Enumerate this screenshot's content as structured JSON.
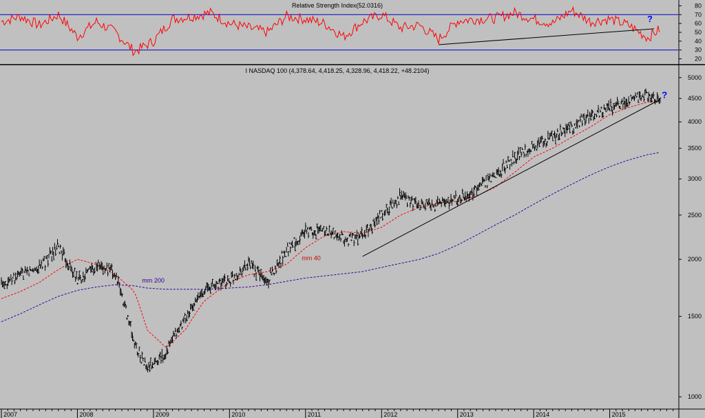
{
  "chart_data": [
    {
      "type": "line",
      "title": "Relative Strength Index(52.0316)",
      "ylim": [
        15,
        85
      ],
      "yticks": [
        20,
        30,
        40,
        50,
        60,
        70,
        80
      ],
      "reference_lines": [
        30,
        70
      ],
      "trendline": {
        "from": [
          "2012-10",
          36
        ],
        "to": [
          "2015-08",
          54
        ]
      },
      "annotation": "?",
      "x": [
        "2007-01",
        "2007-04",
        "2007-07",
        "2007-10",
        "2008-01",
        "2008-04",
        "2008-07",
        "2008-10",
        "2009-01",
        "2009-04",
        "2009-07",
        "2009-10",
        "2010-01",
        "2010-04",
        "2010-07",
        "2010-10",
        "2011-01",
        "2011-04",
        "2011-07",
        "2011-10",
        "2012-01",
        "2012-04",
        "2012-07",
        "2012-10",
        "2013-01",
        "2013-04",
        "2013-07",
        "2013-10",
        "2014-01",
        "2014-04",
        "2014-07",
        "2014-10",
        "2015-01",
        "2015-04",
        "2015-07",
        "2015-09"
      ],
      "series": [
        {
          "values": [
            62,
            68,
            58,
            70,
            45,
            62,
            50,
            28,
            40,
            65,
            68,
            72,
            60,
            55,
            50,
            68,
            65,
            60,
            45,
            62,
            70,
            55,
            58,
            42,
            63,
            65,
            66,
            72,
            65,
            60,
            75,
            62,
            65,
            58,
            44,
            54
          ]
        }
      ]
    },
    {
      "type": "line",
      "title": "I NASDAQ 100 (4,378.64, 4,418.25, 4,328.96, 4,418.22, +48.2104)",
      "yscale": "log",
      "ylim": [
        950,
        5300
      ],
      "yticks": [
        1000,
        1500,
        2000,
        2500,
        3000,
        3500,
        4000,
        4500,
        5000
      ],
      "xticks": [
        "2007",
        "2008",
        "2009",
        "2010",
        "2011",
        "2012",
        "2013",
        "2014",
        "2015"
      ],
      "annotations": [
        "mm 40",
        "mm 200",
        "?"
      ],
      "trendline": {
        "from": [
          "2011-10",
          2030
        ],
        "to": [
          "2015-09",
          4480
        ]
      },
      "x": [
        "2007-01",
        "2007-04",
        "2007-07",
        "2007-10",
        "2008-01",
        "2008-04",
        "2008-07",
        "2008-10",
        "2008-12",
        "2009-03",
        "2009-06",
        "2009-09",
        "2010-01",
        "2010-04",
        "2010-07",
        "2010-10",
        "2011-01",
        "2011-04",
        "2011-07",
        "2011-10",
        "2012-01",
        "2012-04",
        "2012-07",
        "2012-10",
        "2013-01",
        "2013-04",
        "2013-07",
        "2013-10",
        "2014-01",
        "2014-04",
        "2014-07",
        "2014-10",
        "2015-01",
        "2015-04",
        "2015-07",
        "2015-09"
      ],
      "series": [
        {
          "name": "price",
          "values": [
            1780,
            1840,
            1920,
            2120,
            1800,
            1950,
            1850,
            1300,
            1150,
            1250,
            1480,
            1720,
            1800,
            1950,
            1780,
            2100,
            2300,
            2320,
            2200,
            2250,
            2500,
            2750,
            2600,
            2650,
            2700,
            2850,
            3050,
            3350,
            3550,
            3700,
            3900,
            4100,
            4300,
            4450,
            4550,
            4418
          ]
        },
        {
          "name": "mm 40",
          "values": [
            1640,
            1700,
            1780,
            1900,
            2000,
            1950,
            1850,
            1700,
            1400,
            1280,
            1400,
            1620,
            1780,
            1850,
            1880,
            1950,
            2120,
            2250,
            2300,
            2280,
            2350,
            2500,
            2600,
            2650,
            2680,
            2750,
            2880,
            3100,
            3350,
            3500,
            3700,
            3900,
            4150,
            4300,
            4420,
            4460
          ]
        },
        {
          "name": "mm 200",
          "values": [
            1460,
            1520,
            1590,
            1660,
            1710,
            1740,
            1760,
            1750,
            1730,
            1720,
            1720,
            1720,
            1730,
            1740,
            1760,
            1790,
            1820,
            1840,
            1860,
            1880,
            1920,
            1960,
            2000,
            2060,
            2150,
            2260,
            2380,
            2500,
            2640,
            2780,
            2920,
            3060,
            3190,
            3300,
            3390,
            3430
          ]
        }
      ]
    }
  ]
}
